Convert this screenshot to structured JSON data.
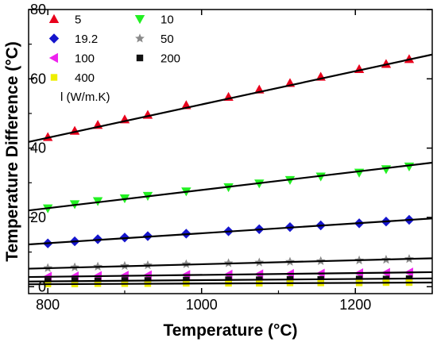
{
  "chart_data": {
    "type": "scatter",
    "xlabel": "Temperature (°C)",
    "ylabel": "Temperature Difference (°C)",
    "xlim": [
      775,
      1300
    ],
    "ylim": [
      -2,
      80
    ],
    "xticks": [
      800,
      1000,
      1200
    ],
    "yticks": [
      0,
      20,
      40,
      60,
      80
    ],
    "x": [
      800,
      835,
      865,
      900,
      930,
      980,
      1035,
      1075,
      1115,
      1155,
      1205,
      1240,
      1270
    ],
    "legend_title": "l (W/m.K)",
    "legend_position": "top-left",
    "grid": false,
    "fit_lines": "linear fit line through each series",
    "series": [
      {
        "name": "5",
        "marker": "triangle-up",
        "color": "#e8001c",
        "values": [
          43.2,
          45.0,
          46.7,
          48.3,
          49.6,
          52.4,
          54.8,
          56.9,
          58.8,
          60.6,
          62.8,
          64.3,
          65.7
        ],
        "fit": [
          [
            775,
            41.8
          ],
          [
            1300,
            67.0
          ]
        ]
      },
      {
        "name": "10",
        "marker": "triangle-down",
        "color": "#22f022",
        "values": [
          22.6,
          23.8,
          24.7,
          25.5,
          26.2,
          27.5,
          28.7,
          29.8,
          30.8,
          31.8,
          32.9,
          33.9,
          34.7
        ],
        "fit": [
          [
            775,
            22.0
          ],
          [
            1300,
            35.8
          ]
        ]
      },
      {
        "name": "19.2",
        "marker": "diamond",
        "color": "#1515cc",
        "values": [
          12.5,
          13.1,
          13.7,
          14.2,
          14.6,
          15.3,
          16.0,
          16.6,
          17.2,
          17.7,
          18.3,
          18.8,
          19.3
        ],
        "fit": [
          [
            775,
            12.2
          ],
          [
            1300,
            19.7
          ]
        ]
      },
      {
        "name": "50",
        "marker": "star",
        "color": "#8a8a8a",
        "values": [
          5.4,
          5.6,
          5.8,
          6.0,
          6.2,
          6.5,
          6.8,
          7.0,
          7.2,
          7.4,
          7.6,
          7.8,
          8.0
        ],
        "fit": [
          [
            775,
            5.2
          ],
          [
            1300,
            8.2
          ]
        ]
      },
      {
        "name": "100",
        "marker": "triangle-left",
        "color": "#ee22ee",
        "values": [
          2.9,
          3.0,
          3.1,
          3.2,
          3.3,
          3.4,
          3.5,
          3.6,
          3.7,
          3.8,
          3.9,
          4.0,
          4.1
        ],
        "fit": [
          [
            775,
            2.8
          ],
          [
            1300,
            4.2
          ]
        ]
      },
      {
        "name": "200",
        "marker": "square",
        "color": "#111111",
        "values": [
          1.6,
          1.7,
          1.7,
          1.8,
          1.8,
          1.9,
          2.0,
          2.0,
          2.1,
          2.1,
          2.2,
          2.2,
          2.3
        ],
        "fit": [
          [
            775,
            1.5
          ],
          [
            1300,
            2.4
          ]
        ]
      },
      {
        "name": "400",
        "marker": "square",
        "color": "#eeee00",
        "values": [
          0.8,
          0.8,
          0.9,
          0.9,
          0.9,
          1.0,
          1.0,
          1.0,
          1.1,
          1.1,
          1.1,
          1.2,
          1.2
        ],
        "fit": [
          [
            775,
            0.7
          ],
          [
            1300,
            1.2
          ]
        ]
      }
    ]
  }
}
